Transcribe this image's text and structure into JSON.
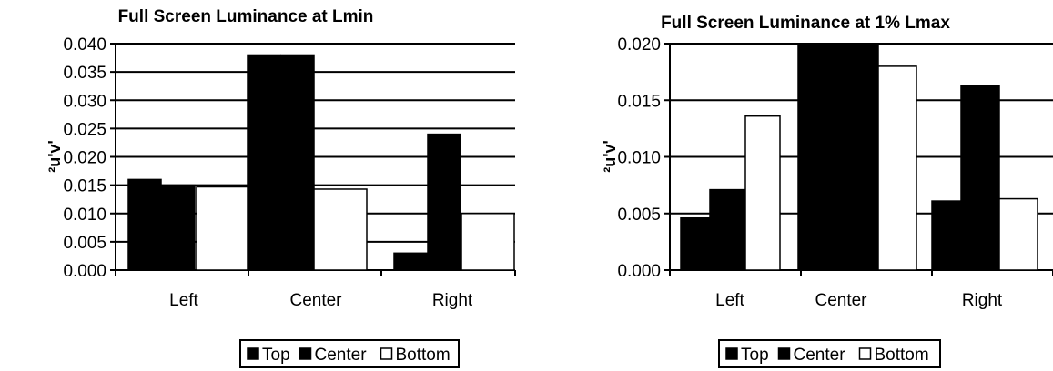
{
  "chart_data": [
    {
      "type": "bar",
      "title": "Full Screen Luminance at Lmin",
      "xlabel": "",
      "ylabel": "²u'v'",
      "ylim": [
        0,
        0.04
      ],
      "yticks": [
        "0.000",
        "0.005",
        "0.010",
        "0.015",
        "0.020",
        "0.025",
        "0.030",
        "0.035",
        "0.040"
      ],
      "categories": [
        "Left",
        "Center",
        "Right"
      ],
      "series": [
        {
          "name": "Top",
          "values": [
            0.016,
            0.038,
            0.003
          ],
          "color": "#000000"
        },
        {
          "name": "Center",
          "values": [
            0.015,
            0.038,
            0.024
          ],
          "color": "#000000"
        },
        {
          "name": "Bottom",
          "values": [
            0.0147,
            0.0143,
            0.01
          ],
          "color": "#ffffff"
        }
      ],
      "grid": true,
      "legend": "bottom"
    },
    {
      "type": "bar",
      "title": "Full Screen Luminance at 1% Lmax",
      "xlabel": "",
      "ylabel": "²u'v'",
      "ylim": [
        0,
        0.02
      ],
      "yticks": [
        "0.000",
        "0.005",
        "0.010",
        "0.015",
        "0.020"
      ],
      "categories": [
        "Left",
        "Center",
        "Right"
      ],
      "series": [
        {
          "name": "Top",
          "values": [
            0.0046,
            0.02,
            0.0061
          ],
          "color": "#000000"
        },
        {
          "name": "Center",
          "values": [
            0.0071,
            0.02,
            0.0163
          ],
          "color": "#000000"
        },
        {
          "name": "Bottom",
          "values": [
            0.0136,
            0.018,
            0.0063
          ],
          "color": "#ffffff"
        }
      ],
      "grid": true,
      "legend": "bottom"
    }
  ]
}
